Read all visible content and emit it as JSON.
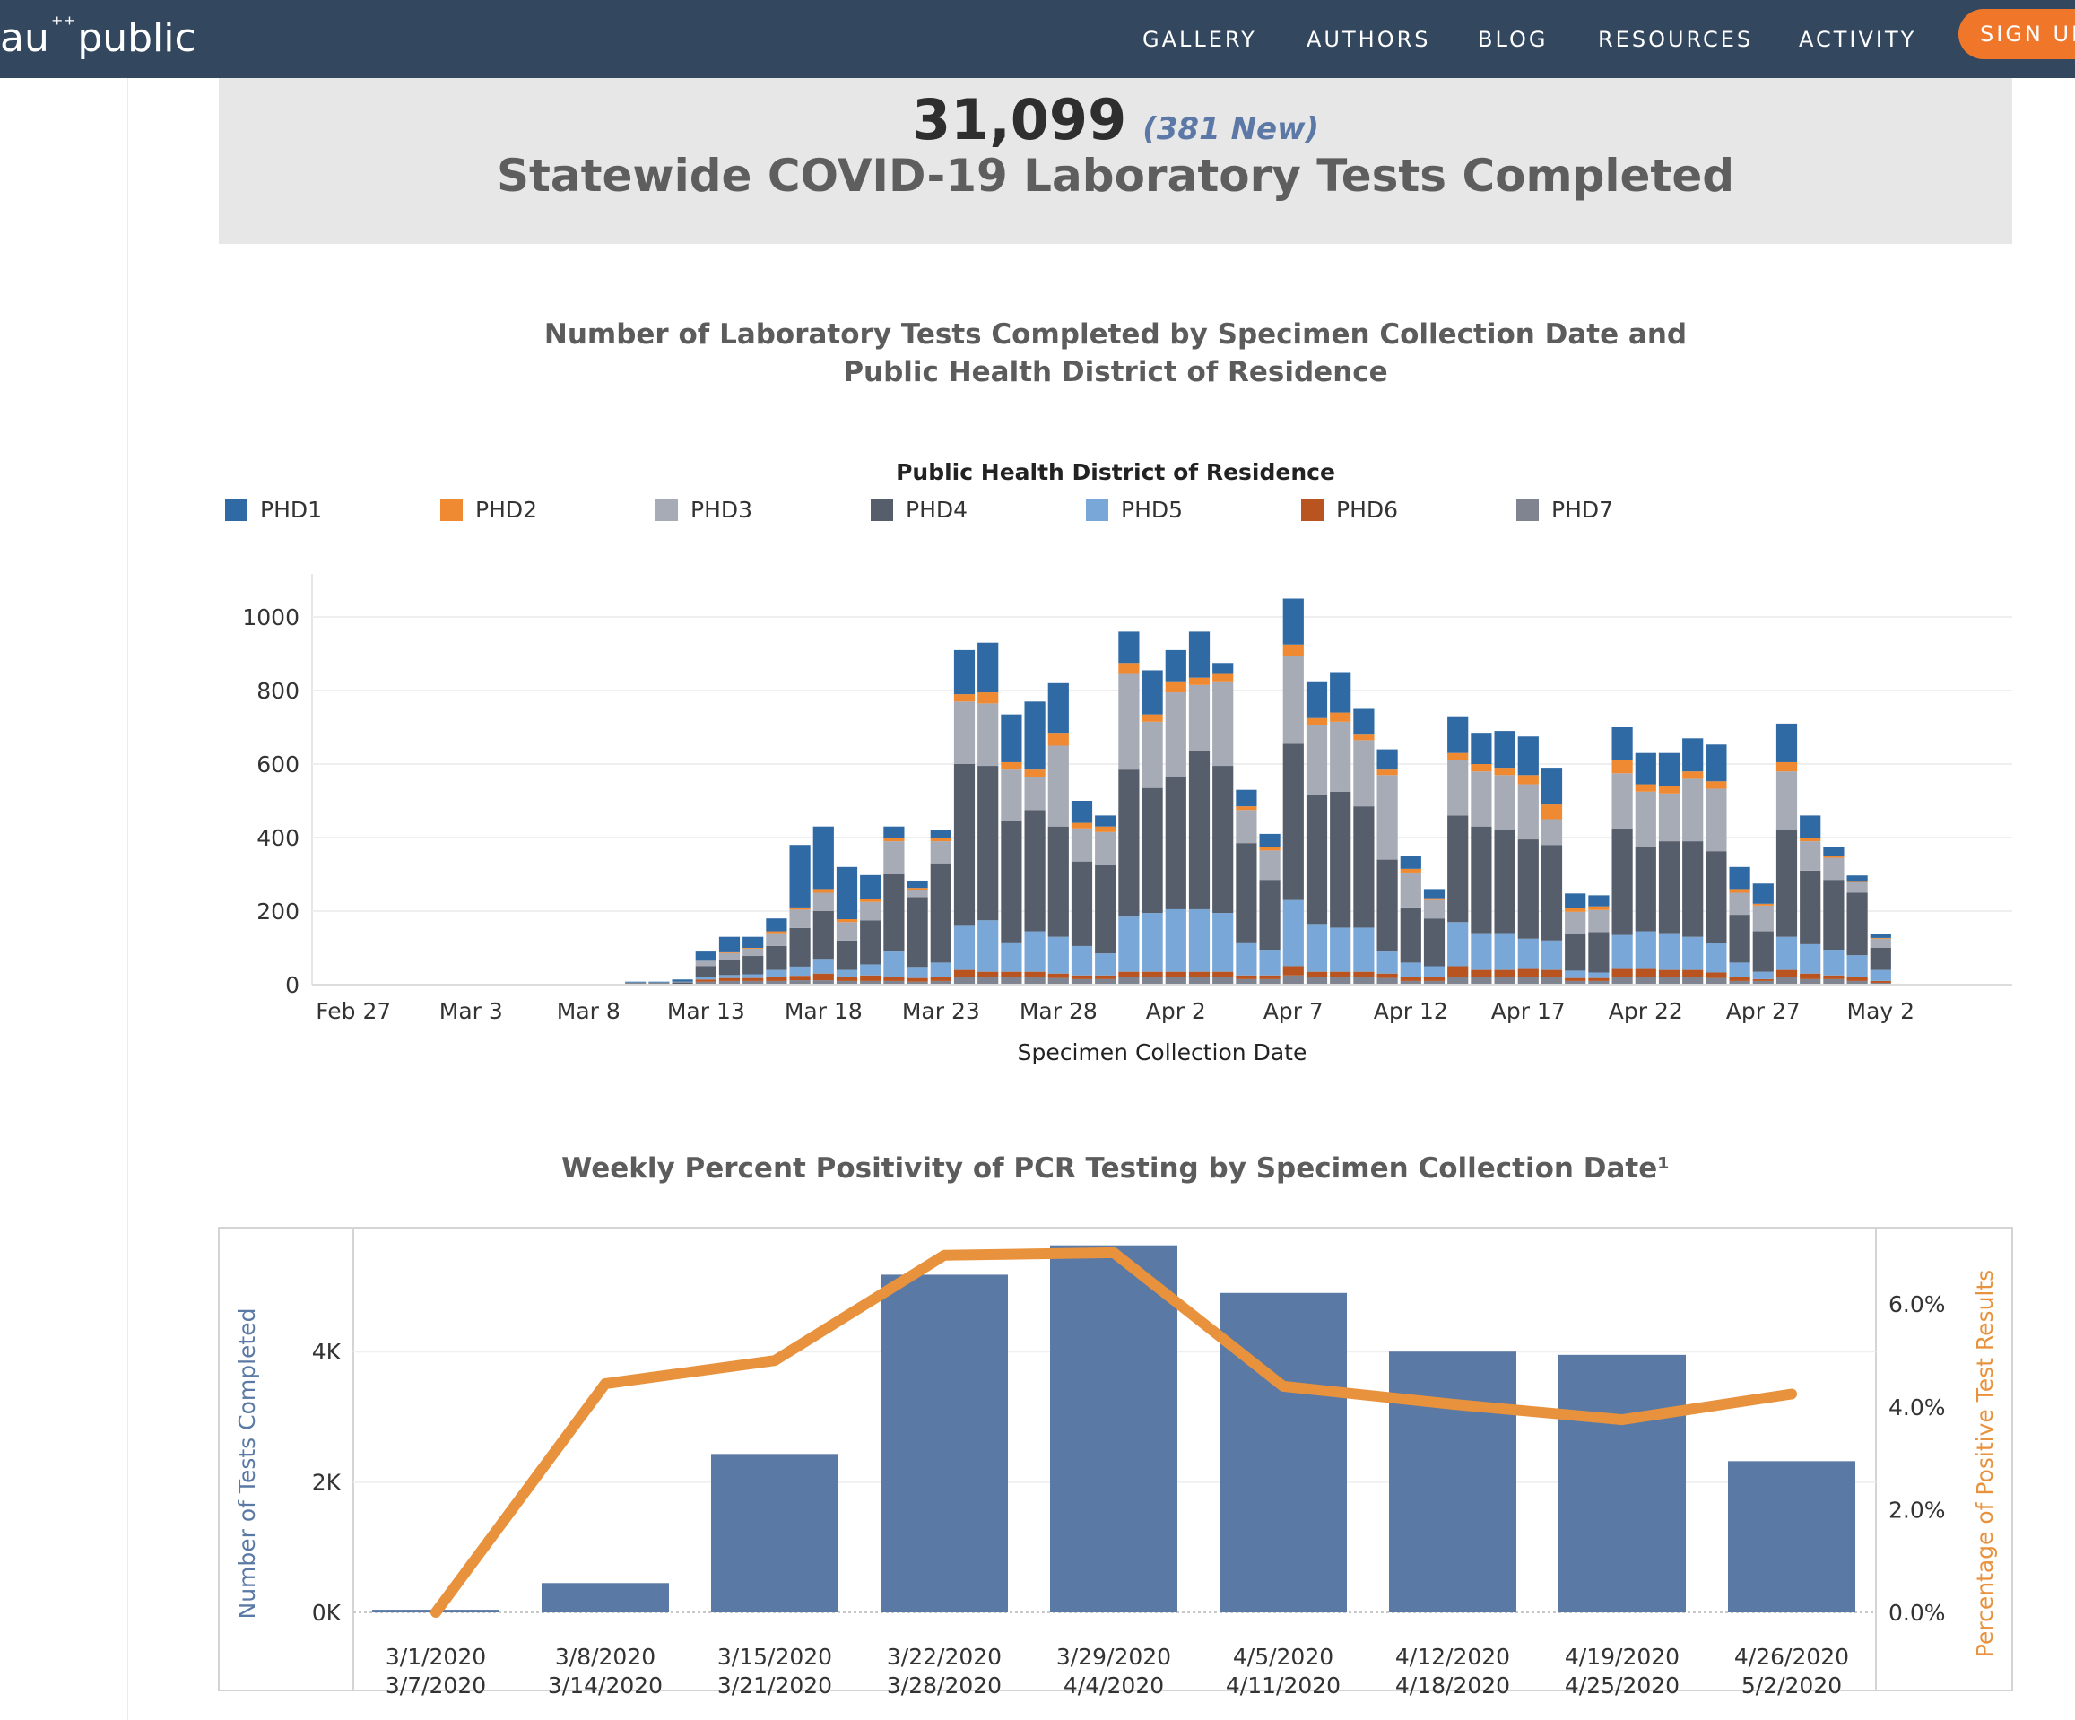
{
  "nav": {
    "logo_left": "au",
    "logo_right": "public",
    "items": [
      {
        "label": "GALLERY"
      },
      {
        "label": "AUTHORS"
      },
      {
        "label": "BLOG"
      },
      {
        "label": "RESOURCES"
      },
      {
        "label": "ACTIVITY"
      }
    ],
    "signup_label": "SIGN UP"
  },
  "kpi": {
    "total": "31,099",
    "new": "(381 New)",
    "title": "Statewide COVID-19 Laboratory Tests Completed"
  },
  "colors": {
    "PHD1": "#2f6aa5",
    "PHD2": "#ef8a33",
    "PHD3": "#a6abb6",
    "PHD4": "#575e6b",
    "PHD5": "#79a8d8",
    "PHD6": "#b9531f",
    "PHD7": "#7f8490",
    "bar": "#5a79a5",
    "line": "#e8923d",
    "grid": "#efefef"
  },
  "chart_data": [
    {
      "type": "bar",
      "stacked": true,
      "title_line1": "Number of Laboratory Tests Completed by Specimen Collection Date and",
      "title_line2": "Public Health District of Residence",
      "legend_title": "Public Health District of Residence",
      "legend_placement": "top",
      "xlabel": "Specimen Collection Date",
      "ylabel": "",
      "ylim": [
        0,
        1100
      ],
      "yticks": [
        0,
        200,
        400,
        600,
        800,
        1000
      ],
      "xtick_labels": [
        "Feb 27",
        "Mar 3",
        "Mar 8",
        "Mar 13",
        "Mar 18",
        "Mar 23",
        "Mar 28",
        "Apr 2",
        "Apr 7",
        "Apr 12",
        "Apr 17",
        "Apr 22",
        "Apr 27",
        "May 2"
      ],
      "grid": true,
      "start_date": "2020-02-26",
      "series_names": [
        "PHD1",
        "PHD2",
        "PHD3",
        "PHD4",
        "PHD5",
        "PHD6",
        "PHD7"
      ],
      "series_order": [
        "PHD7",
        "PHD6",
        "PHD5",
        "PHD4",
        "PHD3",
        "PHD2",
        "PHD1"
      ],
      "days": [
        {
          "date": "2020-03-10",
          "PHD7": 2,
          "PHD6": 0,
          "PHD5": 0,
          "PHD4": 2,
          "PHD3": 2,
          "PHD2": 0,
          "PHD1": 2
        },
        {
          "date": "2020-03-11",
          "PHD7": 2,
          "PHD6": 0,
          "PHD5": 0,
          "PHD4": 2,
          "PHD3": 2,
          "PHD2": 0,
          "PHD1": 2
        },
        {
          "date": "2020-03-12",
          "PHD7": 2,
          "PHD6": 0,
          "PHD5": 0,
          "PHD4": 4,
          "PHD3": 2,
          "PHD2": 0,
          "PHD1": 6
        },
        {
          "date": "2020-03-13",
          "PHD7": 8,
          "PHD6": 6,
          "PHD5": 6,
          "PHD4": 30,
          "PHD3": 15,
          "PHD2": 0,
          "PHD1": 25
        },
        {
          "date": "2020-03-14",
          "PHD7": 10,
          "PHD6": 8,
          "PHD5": 8,
          "PHD4": 40,
          "PHD3": 20,
          "PHD2": 2,
          "PHD1": 42
        },
        {
          "date": "2020-03-15",
          "PHD7": 10,
          "PHD6": 8,
          "PHD5": 10,
          "PHD4": 50,
          "PHD3": 20,
          "PHD2": 2,
          "PHD1": 30
        },
        {
          "date": "2020-03-16",
          "PHD7": 10,
          "PHD6": 10,
          "PHD5": 20,
          "PHD4": 65,
          "PHD3": 35,
          "PHD2": 5,
          "PHD1": 35
        },
        {
          "date": "2020-03-17",
          "PHD7": 12,
          "PHD6": 12,
          "PHD5": 25,
          "PHD4": 105,
          "PHD3": 50,
          "PHD2": 6,
          "PHD1": 170
        },
        {
          "date": "2020-03-18",
          "PHD7": 12,
          "PHD6": 18,
          "PHD5": 40,
          "PHD4": 130,
          "PHD3": 50,
          "PHD2": 10,
          "PHD1": 170
        },
        {
          "date": "2020-03-19",
          "PHD7": 10,
          "PHD6": 10,
          "PHD5": 20,
          "PHD4": 80,
          "PHD3": 50,
          "PHD2": 8,
          "PHD1": 142
        },
        {
          "date": "2020-03-20",
          "PHD7": 10,
          "PHD6": 15,
          "PHD5": 30,
          "PHD4": 120,
          "PHD3": 50,
          "PHD2": 8,
          "PHD1": 65
        },
        {
          "date": "2020-03-21",
          "PHD7": 10,
          "PHD6": 10,
          "PHD5": 70,
          "PHD4": 210,
          "PHD3": 90,
          "PHD2": 10,
          "PHD1": 30
        },
        {
          "date": "2020-03-22",
          "PHD7": 8,
          "PHD6": 10,
          "PHD5": 30,
          "PHD4": 190,
          "PHD3": 20,
          "PHD2": 5,
          "PHD1": 20
        },
        {
          "date": "2020-03-23",
          "PHD7": 10,
          "PHD6": 10,
          "PHD5": 40,
          "PHD4": 270,
          "PHD3": 60,
          "PHD2": 8,
          "PHD1": 22
        },
        {
          "date": "2020-03-24",
          "PHD7": 20,
          "PHD6": 20,
          "PHD5": 120,
          "PHD4": 440,
          "PHD3": 170,
          "PHD2": 20,
          "PHD1": 120
        },
        {
          "date": "2020-03-25",
          "PHD7": 20,
          "PHD6": 15,
          "PHD5": 140,
          "PHD4": 420,
          "PHD3": 170,
          "PHD2": 30,
          "PHD1": 135
        },
        {
          "date": "2020-03-26",
          "PHD7": 20,
          "PHD6": 15,
          "PHD5": 80,
          "PHD4": 330,
          "PHD3": 140,
          "PHD2": 20,
          "PHD1": 130
        },
        {
          "date": "2020-03-27",
          "PHD7": 20,
          "PHD6": 15,
          "PHD5": 110,
          "PHD4": 330,
          "PHD3": 90,
          "PHD2": 20,
          "PHD1": 185
        },
        {
          "date": "2020-03-28",
          "PHD7": 18,
          "PHD6": 12,
          "PHD5": 100,
          "PHD4": 300,
          "PHD3": 220,
          "PHD2": 35,
          "PHD1": 135
        },
        {
          "date": "2020-03-29",
          "PHD7": 15,
          "PHD6": 10,
          "PHD5": 80,
          "PHD4": 230,
          "PHD3": 90,
          "PHD2": 15,
          "PHD1": 60
        },
        {
          "date": "2020-03-30",
          "PHD7": 15,
          "PHD6": 10,
          "PHD5": 60,
          "PHD4": 240,
          "PHD3": 90,
          "PHD2": 15,
          "PHD1": 30
        },
        {
          "date": "2020-03-31",
          "PHD7": 20,
          "PHD6": 15,
          "PHD5": 150,
          "PHD4": 400,
          "PHD3": 260,
          "PHD2": 30,
          "PHD1": 85
        },
        {
          "date": "2020-04-01",
          "PHD7": 20,
          "PHD6": 15,
          "PHD5": 160,
          "PHD4": 340,
          "PHD3": 180,
          "PHD2": 20,
          "PHD1": 120
        },
        {
          "date": "2020-04-02",
          "PHD7": 20,
          "PHD6": 15,
          "PHD5": 170,
          "PHD4": 360,
          "PHD3": 230,
          "PHD2": 30,
          "PHD1": 85
        },
        {
          "date": "2020-04-03",
          "PHD7": 20,
          "PHD6": 15,
          "PHD5": 170,
          "PHD4": 430,
          "PHD3": 180,
          "PHD2": 20,
          "PHD1": 125
        },
        {
          "date": "2020-04-04",
          "PHD7": 20,
          "PHD6": 15,
          "PHD5": 160,
          "PHD4": 400,
          "PHD3": 230,
          "PHD2": 20,
          "PHD1": 30
        },
        {
          "date": "2020-04-05",
          "PHD7": 15,
          "PHD6": 10,
          "PHD5": 90,
          "PHD4": 270,
          "PHD3": 90,
          "PHD2": 10,
          "PHD1": 45
        },
        {
          "date": "2020-04-06",
          "PHD7": 15,
          "PHD6": 10,
          "PHD5": 70,
          "PHD4": 190,
          "PHD3": 80,
          "PHD2": 10,
          "PHD1": 35
        },
        {
          "date": "2020-04-07",
          "PHD7": 25,
          "PHD6": 25,
          "PHD5": 180,
          "PHD4": 425,
          "PHD3": 240,
          "PHD2": 30,
          "PHD1": 125
        },
        {
          "date": "2020-04-08",
          "PHD7": 20,
          "PHD6": 15,
          "PHD5": 130,
          "PHD4": 350,
          "PHD3": 190,
          "PHD2": 20,
          "PHD1": 100
        },
        {
          "date": "2020-04-09",
          "PHD7": 20,
          "PHD6": 15,
          "PHD5": 120,
          "PHD4": 370,
          "PHD3": 190,
          "PHD2": 25,
          "PHD1": 110
        },
        {
          "date": "2020-04-10",
          "PHD7": 20,
          "PHD6": 15,
          "PHD5": 120,
          "PHD4": 330,
          "PHD3": 180,
          "PHD2": 15,
          "PHD1": 70
        },
        {
          "date": "2020-04-11",
          "PHD7": 18,
          "PHD6": 12,
          "PHD5": 60,
          "PHD4": 250,
          "PHD3": 230,
          "PHD2": 15,
          "PHD1": 55
        },
        {
          "date": "2020-04-12",
          "PHD7": 10,
          "PHD6": 10,
          "PHD5": 40,
          "PHD4": 150,
          "PHD3": 95,
          "PHD2": 10,
          "PHD1": 35
        },
        {
          "date": "2020-04-13",
          "PHD7": 10,
          "PHD6": 10,
          "PHD5": 30,
          "PHD4": 130,
          "PHD3": 50,
          "PHD2": 5,
          "PHD1": 25
        },
        {
          "date": "2020-04-14",
          "PHD7": 20,
          "PHD6": 30,
          "PHD5": 120,
          "PHD4": 290,
          "PHD3": 150,
          "PHD2": 20,
          "PHD1": 100
        },
        {
          "date": "2020-04-15",
          "PHD7": 20,
          "PHD6": 20,
          "PHD5": 100,
          "PHD4": 290,
          "PHD3": 150,
          "PHD2": 20,
          "PHD1": 85
        },
        {
          "date": "2020-04-16",
          "PHD7": 20,
          "PHD6": 20,
          "PHD5": 100,
          "PHD4": 280,
          "PHD3": 150,
          "PHD2": 20,
          "PHD1": 100
        },
        {
          "date": "2020-04-17",
          "PHD7": 20,
          "PHD6": 25,
          "PHD5": 80,
          "PHD4": 270,
          "PHD3": 150,
          "PHD2": 25,
          "PHD1": 105
        },
        {
          "date": "2020-04-18",
          "PHD7": 20,
          "PHD6": 20,
          "PHD5": 80,
          "PHD4": 260,
          "PHD3": 70,
          "PHD2": 40,
          "PHD1": 100
        },
        {
          "date": "2020-04-19",
          "PHD7": 10,
          "PHD6": 8,
          "PHD5": 20,
          "PHD4": 100,
          "PHD3": 60,
          "PHD2": 10,
          "PHD1": 40
        },
        {
          "date": "2020-04-20",
          "PHD7": 10,
          "PHD6": 8,
          "PHD5": 15,
          "PHD4": 110,
          "PHD3": 60,
          "PHD2": 10,
          "PHD1": 30
        },
        {
          "date": "2020-04-21",
          "PHD7": 20,
          "PHD6": 25,
          "PHD5": 90,
          "PHD4": 290,
          "PHD3": 150,
          "PHD2": 35,
          "PHD1": 90
        },
        {
          "date": "2020-04-22",
          "PHD7": 20,
          "PHD6": 25,
          "PHD5": 100,
          "PHD4": 230,
          "PHD3": 150,
          "PHD2": 20,
          "PHD1": 85
        },
        {
          "date": "2020-04-23",
          "PHD7": 20,
          "PHD6": 20,
          "PHD5": 100,
          "PHD4": 250,
          "PHD3": 130,
          "PHD2": 20,
          "PHD1": 90
        },
        {
          "date": "2020-04-24",
          "PHD7": 20,
          "PHD6": 20,
          "PHD5": 90,
          "PHD4": 260,
          "PHD3": 170,
          "PHD2": 20,
          "PHD1": 90
        },
        {
          "date": "2020-04-25",
          "PHD7": 18,
          "PHD6": 15,
          "PHD5": 80,
          "PHD4": 250,
          "PHD3": 170,
          "PHD2": 20,
          "PHD1": 100
        },
        {
          "date": "2020-04-26",
          "PHD7": 10,
          "PHD6": 10,
          "PHD5": 40,
          "PHD4": 130,
          "PHD3": 60,
          "PHD2": 10,
          "PHD1": 60
        },
        {
          "date": "2020-04-27",
          "PHD7": 10,
          "PHD6": 5,
          "PHD5": 20,
          "PHD4": 110,
          "PHD3": 70,
          "PHD2": 5,
          "PHD1": 55
        },
        {
          "date": "2020-04-28",
          "PHD7": 20,
          "PHD6": 20,
          "PHD5": 90,
          "PHD4": 290,
          "PHD3": 160,
          "PHD2": 25,
          "PHD1": 105
        },
        {
          "date": "2020-04-29",
          "PHD7": 15,
          "PHD6": 15,
          "PHD5": 80,
          "PHD4": 200,
          "PHD3": 80,
          "PHD2": 10,
          "PHD1": 60
        },
        {
          "date": "2020-04-30",
          "PHD7": 15,
          "PHD6": 10,
          "PHD5": 70,
          "PHD4": 190,
          "PHD3": 60,
          "PHD2": 5,
          "PHD1": 25
        },
        {
          "date": "2020-05-01",
          "PHD7": 10,
          "PHD6": 10,
          "PHD5": 60,
          "PHD4": 170,
          "PHD3": 30,
          "PHD2": 2,
          "PHD1": 15
        },
        {
          "date": "2020-05-02",
          "PHD7": 5,
          "PHD6": 5,
          "PHD5": 30,
          "PHD4": 60,
          "PHD3": 25,
          "PHD2": 2,
          "PHD1": 10
        }
      ]
    },
    {
      "type": "bar",
      "secondary_type": "line",
      "title": "Weekly Percent Positivity of PCR Testing by Specimen Collection Date¹",
      "ylabel": "Number of Tests Completed",
      "y2label": "Percentage of Positive Test Results",
      "ylim": [
        0,
        5900
      ],
      "yticks": [
        0,
        2000,
        4000
      ],
      "ytick_labels": [
        "0K",
        "2K",
        "4K"
      ],
      "y2lim": [
        0,
        7.5
      ],
      "y2ticks": [
        0,
        2,
        4,
        6
      ],
      "y2tick_labels": [
        "0.0%",
        "2.0%",
        "4.0%",
        "6.0%"
      ],
      "grid": true,
      "categories": [
        [
          "3/1/2020",
          "3/7/2020"
        ],
        [
          "3/8/2020",
          "3/14/2020"
        ],
        [
          "3/15/2020",
          "3/21/2020"
        ],
        [
          "3/22/2020",
          "3/28/2020"
        ],
        [
          "3/29/2020",
          "4/4/2020"
        ],
        [
          "4/5/2020",
          "4/11/2020"
        ],
        [
          "4/12/2020",
          "4/18/2020"
        ],
        [
          "4/19/2020",
          "4/25/2020"
        ],
        [
          "4/26/2020",
          "5/2/2020"
        ]
      ],
      "series": [
        {
          "name": "Number of Tests Completed",
          "values": [
            40,
            450,
            2430,
            5180,
            5630,
            4900,
            4000,
            3950,
            2320
          ]
        },
        {
          "name": "Percentage of Positive Test Results",
          "values": [
            0.0,
            4.45,
            4.9,
            6.95,
            7.0,
            4.4,
            4.05,
            3.75,
            4.25
          ]
        }
      ]
    }
  ]
}
